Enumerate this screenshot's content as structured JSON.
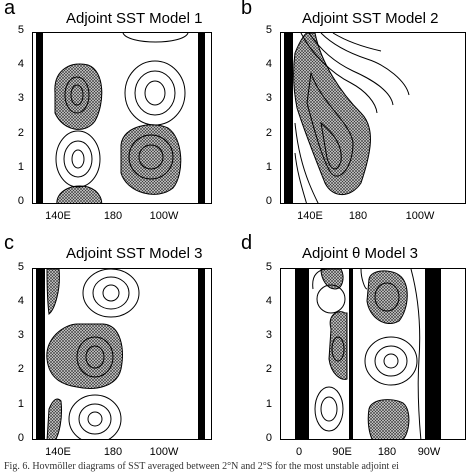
{
  "panels": [
    {
      "letter": "a",
      "title": "Adjoint SST Model 1",
      "y_ticks": [
        "5",
        "4",
        "3",
        "2",
        "1",
        "0"
      ],
      "x_ticks": [
        "140E",
        "180",
        "100W"
      ]
    },
    {
      "letter": "b",
      "title": "Adjoint SST Model 2",
      "y_ticks": [
        "5",
        "4",
        "3",
        "2",
        "1",
        "0"
      ],
      "x_ticks": [
        "140E",
        "180",
        "100W"
      ]
    },
    {
      "letter": "c",
      "title": "Adjoint SST Model 3",
      "y_ticks": [
        "5",
        "4",
        "3",
        "2",
        "1",
        "0"
      ],
      "x_ticks": [
        "140E",
        "180",
        "100W"
      ]
    },
    {
      "letter": "d",
      "title": "Adjoint θ Model 3",
      "y_ticks": [
        "5",
        "4",
        "3",
        "2",
        "1",
        "0"
      ],
      "x_ticks": [
        "0",
        "90E",
        "180",
        "90W"
      ]
    }
  ],
  "caption": "Fig. 6. Hovmöller diagrams of SST averaged between 2°N and 2°S for the most unstable adjoint ei"
}
